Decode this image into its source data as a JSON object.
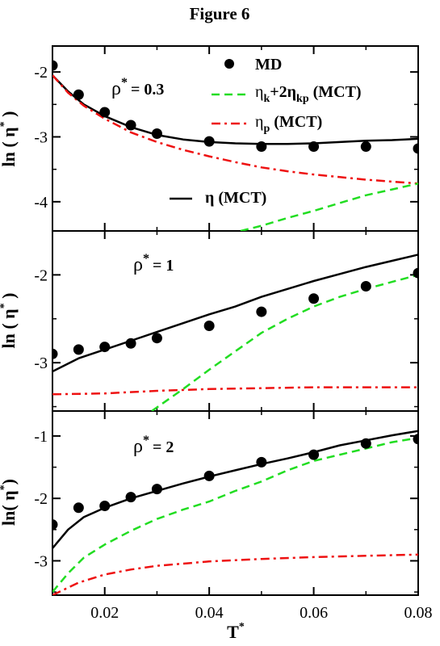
{
  "figure_title": "Figure 6",
  "xlabel_base": "T",
  "xlabel_sup": "*",
  "legend": {
    "md": "MD",
    "kin": {
      "eta": "η",
      "sub1": "k",
      "mid": "+2η",
      "sub2": "kp",
      "tail": " (MCT)"
    },
    "pot": {
      "eta": "η",
      "sub": "p",
      "tail": " (MCT)"
    },
    "total": "η (MCT)"
  },
  "colors": {
    "md": "#000000",
    "total": "#000000",
    "kin": "#22dd22",
    "pot": "#ee1111"
  },
  "chart_data": [
    {
      "type": "line",
      "panel_label": {
        "rho": "ρ",
        "sup": "*",
        "value": "= 0.3"
      },
      "ylabel": {
        "pre": "ln ( η",
        "sup": "*",
        "post": " )"
      },
      "xlim": [
        0.01,
        0.08
      ],
      "ylim": [
        -4.45,
        -1.6
      ],
      "yticks": [
        -4,
        -3,
        -2
      ],
      "ytick_labels": [
        "-4",
        "-3",
        "-2"
      ],
      "xticks": [
        0.02,
        0.04,
        0.06,
        0.08
      ],
      "series": [
        {
          "key": "md",
          "style": "points",
          "x": [
            0.01,
            0.015,
            0.02,
            0.025,
            0.03,
            0.04,
            0.05,
            0.06,
            0.07,
            0.08
          ],
          "y": [
            -1.9,
            -2.35,
            -2.62,
            -2.82,
            -2.95,
            -3.07,
            -3.15,
            -3.15,
            -3.15,
            -3.18
          ]
        },
        {
          "key": "total",
          "style": "solid",
          "x": [
            0.01,
            0.013,
            0.016,
            0.02,
            0.025,
            0.03,
            0.035,
            0.04,
            0.045,
            0.05,
            0.055,
            0.06,
            0.065,
            0.07,
            0.075,
            0.08
          ],
          "y": [
            -2.05,
            -2.3,
            -2.5,
            -2.68,
            -2.85,
            -2.97,
            -3.04,
            -3.08,
            -3.1,
            -3.11,
            -3.11,
            -3.1,
            -3.08,
            -3.06,
            -3.05,
            -3.03
          ]
        },
        {
          "key": "pot",
          "style": "dashdot",
          "x": [
            0.01,
            0.013,
            0.016,
            0.02,
            0.025,
            0.03,
            0.035,
            0.04,
            0.045,
            0.05,
            0.055,
            0.06,
            0.065,
            0.07,
            0.075,
            0.08
          ],
          "y": [
            -2.05,
            -2.32,
            -2.52,
            -2.72,
            -2.93,
            -3.08,
            -3.2,
            -3.3,
            -3.39,
            -3.47,
            -3.53,
            -3.58,
            -3.62,
            -3.66,
            -3.69,
            -3.72
          ]
        },
        {
          "key": "kin",
          "style": "dashed",
          "x": [
            0.046,
            0.05,
            0.055,
            0.06,
            0.065,
            0.07,
            0.075,
            0.08
          ],
          "y": [
            -4.45,
            -4.37,
            -4.25,
            -4.14,
            -4.02,
            -3.9,
            -3.81,
            -3.72
          ]
        }
      ]
    },
    {
      "type": "line",
      "panel_label": {
        "rho": "ρ",
        "sup": "*",
        "value": "= 1"
      },
      "ylabel": {
        "pre": "ln ( η",
        "sup": "*",
        "post": " )"
      },
      "xlim": [
        0.01,
        0.08
      ],
      "ylim": [
        -3.55,
        -1.5
      ],
      "yticks": [
        -3,
        -2
      ],
      "ytick_labels": [
        "-3",
        "-2"
      ],
      "xticks": [
        0.02,
        0.04,
        0.06,
        0.08
      ],
      "series": [
        {
          "key": "md",
          "style": "points",
          "x": [
            0.01,
            0.015,
            0.02,
            0.025,
            0.03,
            0.04,
            0.05,
            0.06,
            0.07,
            0.08
          ],
          "y": [
            -2.9,
            -2.85,
            -2.82,
            -2.78,
            -2.72,
            -2.58,
            -2.42,
            -2.27,
            -2.13,
            -1.98
          ]
        },
        {
          "key": "total",
          "style": "solid",
          "x": [
            0.01,
            0.015,
            0.02,
            0.025,
            0.03,
            0.035,
            0.04,
            0.045,
            0.05,
            0.055,
            0.06,
            0.065,
            0.07,
            0.075,
            0.08
          ],
          "y": [
            -3.1,
            -2.95,
            -2.85,
            -2.75,
            -2.65,
            -2.55,
            -2.45,
            -2.36,
            -2.25,
            -2.16,
            -2.07,
            -1.99,
            -1.91,
            -1.84,
            -1.77
          ]
        },
        {
          "key": "kin",
          "style": "dashed",
          "x": [
            0.029,
            0.035,
            0.04,
            0.045,
            0.05,
            0.055,
            0.06,
            0.065,
            0.07,
            0.075,
            0.08
          ],
          "y": [
            -3.55,
            -3.3,
            -3.08,
            -2.87,
            -2.66,
            -2.5,
            -2.36,
            -2.25,
            -2.16,
            -2.08,
            -2.0
          ]
        },
        {
          "key": "pot",
          "style": "dashdot",
          "x": [
            0.01,
            0.02,
            0.03,
            0.04,
            0.05,
            0.06,
            0.07,
            0.08
          ],
          "y": [
            -3.36,
            -3.35,
            -3.32,
            -3.3,
            -3.29,
            -3.28,
            -3.28,
            -3.28
          ]
        }
      ]
    },
    {
      "type": "line",
      "panel_label": {
        "rho": "ρ",
        "sup": "*",
        "value": "= 2"
      },
      "ylabel": {
        "pre": "ln(",
        "mid": " η",
        "sup": "*",
        "post": ")"
      },
      "xlim": [
        0.01,
        0.08
      ],
      "ylim": [
        -3.55,
        -0.6
      ],
      "yticks": [
        -3,
        -2,
        -1
      ],
      "ytick_labels": [
        "-3",
        "-2",
        "-1"
      ],
      "xticks": [
        0.02,
        0.04,
        0.06,
        0.08
      ],
      "xtick_labels": [
        "0.02",
        "0.04",
        "0.06",
        "0.08"
      ],
      "series": [
        {
          "key": "md",
          "style": "points",
          "x": [
            0.01,
            0.015,
            0.02,
            0.025,
            0.03,
            0.04,
            0.05,
            0.06,
            0.07,
            0.08
          ],
          "y": [
            -2.42,
            -2.15,
            -2.12,
            -1.98,
            -1.85,
            -1.64,
            -1.42,
            -1.3,
            -1.12,
            -1.05
          ]
        },
        {
          "key": "total",
          "style": "solid",
          "x": [
            0.01,
            0.013,
            0.016,
            0.02,
            0.025,
            0.03,
            0.035,
            0.04,
            0.045,
            0.05,
            0.055,
            0.06,
            0.065,
            0.07,
            0.075,
            0.08
          ],
          "y": [
            -2.8,
            -2.5,
            -2.3,
            -2.15,
            -2.0,
            -1.88,
            -1.76,
            -1.65,
            -1.55,
            -1.45,
            -1.36,
            -1.26,
            -1.15,
            -1.07,
            -0.99,
            -0.92
          ]
        },
        {
          "key": "kin",
          "style": "dashed",
          "x": [
            0.01,
            0.013,
            0.016,
            0.02,
            0.025,
            0.03,
            0.035,
            0.04,
            0.045,
            0.05,
            0.055,
            0.06,
            0.065,
            0.07,
            0.075,
            0.08
          ],
          "y": [
            -3.5,
            -3.2,
            -2.95,
            -2.74,
            -2.52,
            -2.33,
            -2.18,
            -2.05,
            -1.88,
            -1.73,
            -1.55,
            -1.4,
            -1.3,
            -1.2,
            -1.1,
            -1.03
          ]
        },
        {
          "key": "pot",
          "style": "dashdot",
          "x": [
            0.01,
            0.015,
            0.02,
            0.025,
            0.03,
            0.04,
            0.05,
            0.06,
            0.07,
            0.08
          ],
          "y": [
            -3.55,
            -3.35,
            -3.22,
            -3.14,
            -3.08,
            -3.01,
            -2.97,
            -2.94,
            -2.92,
            -2.9
          ]
        }
      ]
    }
  ]
}
